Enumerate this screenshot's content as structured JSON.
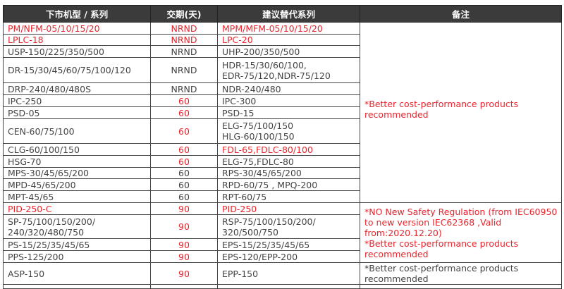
{
  "headers": [
    "下市机型 / 系列",
    "交期(天)",
    "建议替代系列",
    "备注"
  ],
  "colors": {
    "red": "#e8242c",
    "text": "#444444",
    "header_bg": "#3b3b3b"
  },
  "rows": [
    {
      "model": "PM/NFM-05/10/15/20",
      "lead": "NRND",
      "replacement": "MPM/MFM-05/10/15/20",
      "model_red": true,
      "lead_red": true,
      "rep_red": true
    },
    {
      "model": "LPLC-18",
      "lead": "NRND",
      "replacement": "LPC-20",
      "model_red": true,
      "lead_red": true,
      "rep_red": true
    },
    {
      "model": "USP-150/225/350/500",
      "lead": "NRND",
      "replacement": "UHP-200/350/500"
    },
    {
      "model": "DR-15/30/45/60/75/100/120",
      "lead": "NRND",
      "replacement": "HDR-15/30/60/100,\nEDR-75/120,NDR-75/120",
      "tall": true
    },
    {
      "model": "DRP-240/480/480S",
      "lead": "NRND",
      "replacement": "NDR-240/480"
    },
    {
      "model": "IPC-250",
      "lead": "60",
      "replacement": "IPC-300",
      "lead_red": true
    },
    {
      "model": "PSD-05",
      "lead": "60",
      "replacement": "PSD-15",
      "lead_red": true
    },
    {
      "model": "CEN-60/75/100",
      "lead": "60",
      "replacement": "ELG-75/100/150\nHLG-60/100/150",
      "lead_red": true,
      "tall": true
    },
    {
      "model": "CLG-60/100/150",
      "lead": "60",
      "replacement": "FDL-65,FDLC-80/100",
      "lead_red": true,
      "rep_red": true
    },
    {
      "model": "HSG-70",
      "lead": "60",
      "replacement": "ELG-75,FDLC-80",
      "lead_red": true
    },
    {
      "model": "MPS-30/45/65/200",
      "lead": "60",
      "replacement": "RPS-30/45/65/200"
    },
    {
      "model": "MPD-45/65/200",
      "lead": "60",
      "replacement": "RPD-60/75 , MPQ-200"
    },
    {
      "model": "MPT-45/65",
      "lead": "60",
      "replacement": "RPT-60/75"
    },
    {
      "model": "PID-250-C",
      "lead": "90",
      "replacement": "PID-250",
      "model_red": true,
      "lead_red": true,
      "rep_red": true
    },
    {
      "model": "SP-75/100/150/200/\n240/320/480/750",
      "lead": "90",
      "replacement": "RSP-75/100/150/200/\n320/500/750",
      "lead_red": true,
      "tall": true
    },
    {
      "model": "PS-15/25/35/45/65",
      "lead": "90",
      "replacement": "EPS-15/25/35/45/65",
      "lead_red": true
    },
    {
      "model": "PPS-125/200",
      "lead": "90",
      "replacement": "EPS-120/EPP-200",
      "lead_red": true
    },
    {
      "model": "ASP-150",
      "lead": "90",
      "replacement": "EPP-150",
      "lead_red": true,
      "tall": true
    }
  ],
  "notes": [
    {
      "text": "*Better cost-performance products recommended",
      "rows": 13,
      "red": true
    },
    {
      "text": "*NO New Safety Regulation (from IEC60950 to new version IEC62368 ,Valid from:2020.12.20)\n*Better cost-performance products recommended",
      "rows": 4,
      "red": true
    },
    {
      "text": "*Better cost-performance products recommended",
      "rows": 1,
      "red": false
    }
  ]
}
